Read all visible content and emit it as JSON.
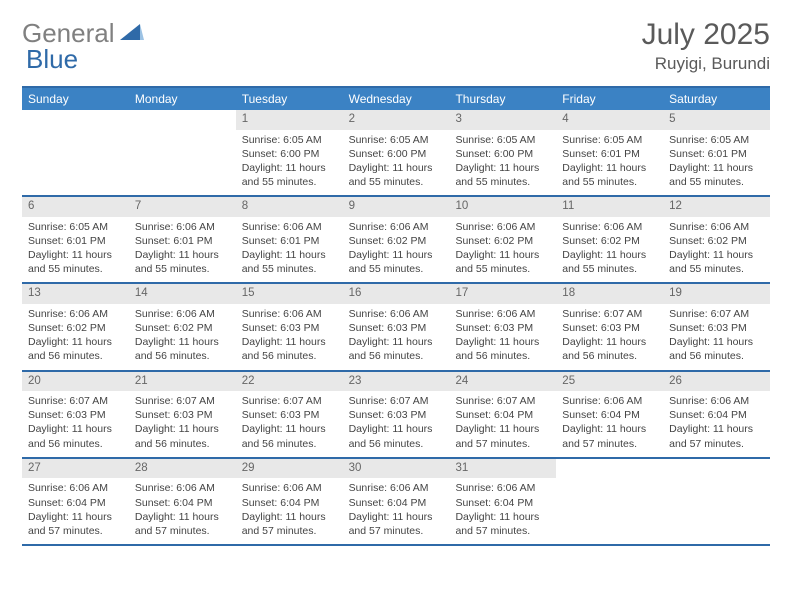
{
  "logo": {
    "part1": "General",
    "part2": "Blue"
  },
  "title": "July 2025",
  "location": "Ruyigi, Burundi",
  "colors": {
    "header_bg": "#3b82c4",
    "border": "#2f6aa8",
    "daynum_bg": "#e8e8e8",
    "logo_gray": "#808080",
    "logo_blue": "#2f6aa8",
    "text": "#444444"
  },
  "daysOfWeek": [
    "Sunday",
    "Monday",
    "Tuesday",
    "Wednesday",
    "Thursday",
    "Friday",
    "Saturday"
  ],
  "weeks": [
    [
      {
        "empty": true
      },
      {
        "empty": true
      },
      {
        "day": "1",
        "sunrise": "Sunrise: 6:05 AM",
        "sunset": "Sunset: 6:00 PM",
        "daylight": "Daylight: 11 hours and 55 minutes."
      },
      {
        "day": "2",
        "sunrise": "Sunrise: 6:05 AM",
        "sunset": "Sunset: 6:00 PM",
        "daylight": "Daylight: 11 hours and 55 minutes."
      },
      {
        "day": "3",
        "sunrise": "Sunrise: 6:05 AM",
        "sunset": "Sunset: 6:00 PM",
        "daylight": "Daylight: 11 hours and 55 minutes."
      },
      {
        "day": "4",
        "sunrise": "Sunrise: 6:05 AM",
        "sunset": "Sunset: 6:01 PM",
        "daylight": "Daylight: 11 hours and 55 minutes."
      },
      {
        "day": "5",
        "sunrise": "Sunrise: 6:05 AM",
        "sunset": "Sunset: 6:01 PM",
        "daylight": "Daylight: 11 hours and 55 minutes."
      }
    ],
    [
      {
        "day": "6",
        "sunrise": "Sunrise: 6:05 AM",
        "sunset": "Sunset: 6:01 PM",
        "daylight": "Daylight: 11 hours and 55 minutes."
      },
      {
        "day": "7",
        "sunrise": "Sunrise: 6:06 AM",
        "sunset": "Sunset: 6:01 PM",
        "daylight": "Daylight: 11 hours and 55 minutes."
      },
      {
        "day": "8",
        "sunrise": "Sunrise: 6:06 AM",
        "sunset": "Sunset: 6:01 PM",
        "daylight": "Daylight: 11 hours and 55 minutes."
      },
      {
        "day": "9",
        "sunrise": "Sunrise: 6:06 AM",
        "sunset": "Sunset: 6:02 PM",
        "daylight": "Daylight: 11 hours and 55 minutes."
      },
      {
        "day": "10",
        "sunrise": "Sunrise: 6:06 AM",
        "sunset": "Sunset: 6:02 PM",
        "daylight": "Daylight: 11 hours and 55 minutes."
      },
      {
        "day": "11",
        "sunrise": "Sunrise: 6:06 AM",
        "sunset": "Sunset: 6:02 PM",
        "daylight": "Daylight: 11 hours and 55 minutes."
      },
      {
        "day": "12",
        "sunrise": "Sunrise: 6:06 AM",
        "sunset": "Sunset: 6:02 PM",
        "daylight": "Daylight: 11 hours and 55 minutes."
      }
    ],
    [
      {
        "day": "13",
        "sunrise": "Sunrise: 6:06 AM",
        "sunset": "Sunset: 6:02 PM",
        "daylight": "Daylight: 11 hours and 56 minutes."
      },
      {
        "day": "14",
        "sunrise": "Sunrise: 6:06 AM",
        "sunset": "Sunset: 6:02 PM",
        "daylight": "Daylight: 11 hours and 56 minutes."
      },
      {
        "day": "15",
        "sunrise": "Sunrise: 6:06 AM",
        "sunset": "Sunset: 6:03 PM",
        "daylight": "Daylight: 11 hours and 56 minutes."
      },
      {
        "day": "16",
        "sunrise": "Sunrise: 6:06 AM",
        "sunset": "Sunset: 6:03 PM",
        "daylight": "Daylight: 11 hours and 56 minutes."
      },
      {
        "day": "17",
        "sunrise": "Sunrise: 6:06 AM",
        "sunset": "Sunset: 6:03 PM",
        "daylight": "Daylight: 11 hours and 56 minutes."
      },
      {
        "day": "18",
        "sunrise": "Sunrise: 6:07 AM",
        "sunset": "Sunset: 6:03 PM",
        "daylight": "Daylight: 11 hours and 56 minutes."
      },
      {
        "day": "19",
        "sunrise": "Sunrise: 6:07 AM",
        "sunset": "Sunset: 6:03 PM",
        "daylight": "Daylight: 11 hours and 56 minutes."
      }
    ],
    [
      {
        "day": "20",
        "sunrise": "Sunrise: 6:07 AM",
        "sunset": "Sunset: 6:03 PM",
        "daylight": "Daylight: 11 hours and 56 minutes."
      },
      {
        "day": "21",
        "sunrise": "Sunrise: 6:07 AM",
        "sunset": "Sunset: 6:03 PM",
        "daylight": "Daylight: 11 hours and 56 minutes."
      },
      {
        "day": "22",
        "sunrise": "Sunrise: 6:07 AM",
        "sunset": "Sunset: 6:03 PM",
        "daylight": "Daylight: 11 hours and 56 minutes."
      },
      {
        "day": "23",
        "sunrise": "Sunrise: 6:07 AM",
        "sunset": "Sunset: 6:03 PM",
        "daylight": "Daylight: 11 hours and 56 minutes."
      },
      {
        "day": "24",
        "sunrise": "Sunrise: 6:07 AM",
        "sunset": "Sunset: 6:04 PM",
        "daylight": "Daylight: 11 hours and 57 minutes."
      },
      {
        "day": "25",
        "sunrise": "Sunrise: 6:06 AM",
        "sunset": "Sunset: 6:04 PM",
        "daylight": "Daylight: 11 hours and 57 minutes."
      },
      {
        "day": "26",
        "sunrise": "Sunrise: 6:06 AM",
        "sunset": "Sunset: 6:04 PM",
        "daylight": "Daylight: 11 hours and 57 minutes."
      }
    ],
    [
      {
        "day": "27",
        "sunrise": "Sunrise: 6:06 AM",
        "sunset": "Sunset: 6:04 PM",
        "daylight": "Daylight: 11 hours and 57 minutes."
      },
      {
        "day": "28",
        "sunrise": "Sunrise: 6:06 AM",
        "sunset": "Sunset: 6:04 PM",
        "daylight": "Daylight: 11 hours and 57 minutes."
      },
      {
        "day": "29",
        "sunrise": "Sunrise: 6:06 AM",
        "sunset": "Sunset: 6:04 PM",
        "daylight": "Daylight: 11 hours and 57 minutes."
      },
      {
        "day": "30",
        "sunrise": "Sunrise: 6:06 AM",
        "sunset": "Sunset: 6:04 PM",
        "daylight": "Daylight: 11 hours and 57 minutes."
      },
      {
        "day": "31",
        "sunrise": "Sunrise: 6:06 AM",
        "sunset": "Sunset: 6:04 PM",
        "daylight": "Daylight: 11 hours and 57 minutes."
      },
      {
        "empty": true
      },
      {
        "empty": true
      }
    ]
  ]
}
